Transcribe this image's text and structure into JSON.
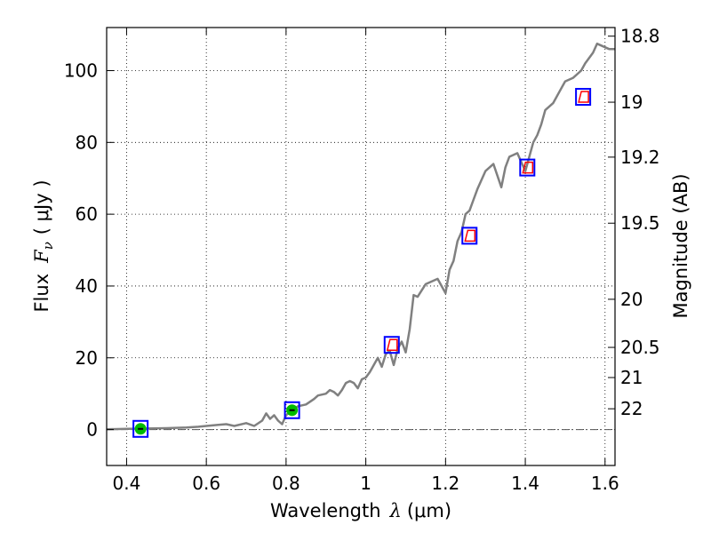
{
  "chart_data": {
    "type": "line",
    "xlabel_prefix": "Wavelength",
    "xlabel_symbol": "λ",
    "xlabel_unit": "(μm)",
    "ylabel_prefix": "Flux",
    "ylabel_symbol": "F",
    "ylabel_subscript": "ν",
    "ylabel_unit": "( μJy )",
    "y2label": "Magnitude (AB)",
    "xlim": [
      0.35,
      1.625
    ],
    "ylim": [
      -10,
      112
    ],
    "grid": true,
    "x_ticks": [
      0.4,
      0.6,
      0.8,
      1.0,
      1.2,
      1.4,
      1.6
    ],
    "x_tick_labels": [
      "0.4",
      "0.6",
      "0.8",
      "1",
      "1.2",
      "1.4",
      "1.6"
    ],
    "y_ticks": [
      0,
      20,
      40,
      60,
      80,
      100
    ],
    "y_tick_labels": [
      "0",
      "20",
      "40",
      "60",
      "80",
      "100"
    ],
    "y2_ticks": [
      {
        "label": "18.8",
        "flux": 109.6
      },
      {
        "label": "19",
        "flux": 91.2
      },
      {
        "label": "19.2",
        "flux": 75.9
      },
      {
        "label": "19.5",
        "flux": 57.5
      },
      {
        "label": "20",
        "flux": 36.3
      },
      {
        "label": "20.5",
        "flux": 22.9
      },
      {
        "label": "21",
        "flux": 14.5
      },
      {
        "label": "22",
        "flux": 5.8
      }
    ],
    "reference_line": {
      "y": 0,
      "style": "dash-dot",
      "color": "#555555"
    },
    "colors": {
      "spectrum": "#808080",
      "box": "#0000ff",
      "model_box": "#ff0000",
      "detection": "#00bb00",
      "axis": "#000000",
      "grid": "#000000"
    },
    "series": [
      {
        "style": "line",
        "x": [
          0.35,
          0.4,
          0.45,
          0.5,
          0.55,
          0.58,
          0.6,
          0.63,
          0.65,
          0.67,
          0.7,
          0.72,
          0.74,
          0.75,
          0.76,
          0.77,
          0.78,
          0.79,
          0.8,
          0.81,
          0.83,
          0.85,
          0.87,
          0.88,
          0.9,
          0.91,
          0.92,
          0.93,
          0.94,
          0.95,
          0.96,
          0.97,
          0.98,
          0.99,
          1.0,
          1.01,
          1.02,
          1.03,
          1.04,
          1.05,
          1.06,
          1.07,
          1.08,
          1.09,
          1.1,
          1.11,
          1.12,
          1.13,
          1.15,
          1.18,
          1.2,
          1.21,
          1.22,
          1.23,
          1.24,
          1.25,
          1.26,
          1.27,
          1.28,
          1.3,
          1.32,
          1.34,
          1.35,
          1.36,
          1.38,
          1.4,
          1.42,
          1.43,
          1.44,
          1.45,
          1.46,
          1.47,
          1.49,
          1.5,
          1.52,
          1.54,
          1.55,
          1.57,
          1.58,
          1.59,
          1.6,
          1.61,
          1.625
        ],
        "y": [
          0.1,
          0.2,
          0.3,
          0.4,
          0.6,
          0.8,
          1.0,
          1.3,
          1.5,
          1.0,
          1.8,
          1.0,
          2.5,
          4.5,
          3.0,
          4.0,
          2.5,
          1.5,
          4.0,
          5.0,
          6.5,
          7.0,
          8.5,
          9.5,
          10.0,
          11.0,
          10.5,
          9.5,
          11.0,
          13.0,
          13.5,
          13.0,
          11.5,
          14.0,
          14.5,
          16.0,
          18.0,
          20.0,
          17.5,
          21.0,
          22.0,
          18.0,
          22.5,
          24.5,
          21.5,
          28.0,
          37.5,
          37.0,
          40.5,
          42.0,
          38.0,
          44.5,
          47.0,
          52.5,
          55.0,
          60.0,
          61.0,
          64.0,
          67.0,
          72.0,
          74.0,
          67.5,
          73.0,
          76.0,
          77.0,
          72.0,
          80.0,
          82.0,
          85.0,
          89.0,
          90.0,
          91.0,
          95.0,
          97.0,
          98.0,
          100.0,
          102.0,
          105.0,
          107.5,
          107.0,
          106.5,
          106.0,
          106.0
        ]
      },
      {
        "style": "boxes",
        "x": [
          0.435,
          0.815,
          1.065,
          1.26,
          1.405,
          1.545
        ],
        "y": [
          0.2,
          5.4,
          23.6,
          54.0,
          73.0,
          92.7
        ]
      },
      {
        "style": "model-boxes",
        "x": [
          1.065,
          1.26,
          1.405,
          1.545
        ],
        "y": [
          23.6,
          54.0,
          73.0,
          92.7
        ]
      },
      {
        "style": "detections",
        "x": [
          0.435,
          0.815
        ],
        "y": [
          0.2,
          5.4
        ]
      }
    ]
  }
}
